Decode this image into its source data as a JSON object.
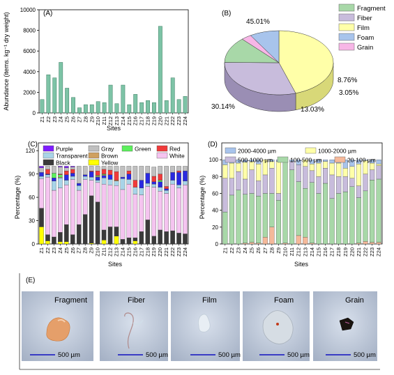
{
  "panels": {
    "a": {
      "letter": "(A)"
    },
    "b": {
      "letter": "(B)"
    },
    "c": {
      "letter": "(C)"
    },
    "d": {
      "letter": "(D)"
    },
    "e": {
      "letter": "(E)"
    }
  },
  "sites": [
    "Z1",
    "Z2",
    "Z3",
    "Z4",
    "Z5",
    "Z6",
    "Z7",
    "Z8",
    "Z9",
    "Z10",
    "Z11",
    "Z12",
    "Z13",
    "Z14",
    "Z15",
    "Z16",
    "Z17",
    "Z18",
    "Z19",
    "Z20",
    "Z21",
    "Z22",
    "Z23",
    "Z24"
  ],
  "colors": {
    "abundance_bar": "#7dc3a6",
    "fragment": "#a8d8a8",
    "fiber": "#c8bcdc",
    "film": "#ffffa8",
    "foam": "#a8c4ec",
    "grain": "#f7b6e6",
    "purple": "#7f1dff",
    "transparent": "#a8d4e8",
    "black": "#3a3a3a",
    "gray": "#c0c0c0",
    "blue": "#2a2ae0",
    "yellow": "#ffff00",
    "green": "#5cf05c",
    "brown": "#cfa060",
    "red": "#f03a3a",
    "white": "#f5c4f0",
    "size_2000_4000": "#a8c4ec",
    "size_1000_2000": "#ffffa8",
    "size_500_1000": "#c8bcdc",
    "size_100_500": "#a8d8a8",
    "size_20_100": "#f5b99a"
  },
  "chart_data": [
    {
      "id": "A",
      "type": "bar",
      "xlabel": "Sites",
      "ylabel": "Abundance (items. kg⁻¹ dry weight)",
      "ylim": [
        0,
        10000
      ],
      "yticks": [
        0,
        2000,
        4000,
        6000,
        8000,
        10000
      ],
      "categories": [
        "Z1",
        "Z2",
        "Z3",
        "Z4",
        "Z5",
        "Z6",
        "Z7",
        "Z8",
        "Z9",
        "Z10",
        "Z11",
        "Z12",
        "Z13",
        "Z14",
        "Z15",
        "Z16",
        "Z17",
        "Z18",
        "Z19",
        "Z20",
        "Z21",
        "Z22",
        "Z23",
        "Z24"
      ],
      "values": [
        1300,
        3700,
        3400,
        4900,
        2400,
        1500,
        500,
        800,
        800,
        1100,
        1000,
        2700,
        900,
        2700,
        800,
        1800,
        1000,
        1200,
        1000,
        8400,
        1200,
        3400,
        1300,
        1600
      ]
    },
    {
      "id": "B",
      "type": "pie",
      "legend": [
        "Fragment",
        "Fiber",
        "Film",
        "Foam",
        "Grain"
      ],
      "legend_position": "top-right",
      "slices": [
        {
          "label": "Film",
          "value": 45.01,
          "text": "45.01%"
        },
        {
          "label": "Fiber",
          "value": 30.14,
          "text": "30.14%"
        },
        {
          "label": "Fragment",
          "value": 13.03,
          "text": "13.03%"
        },
        {
          "label": "Grain",
          "value": 3.05,
          "text": "3.05%"
        },
        {
          "label": "Foam",
          "value": 8.76,
          "text": "8.76%"
        }
      ]
    },
    {
      "id": "C",
      "type": "bar",
      "stacked": true,
      "xlabel": "Sites",
      "ylabel": "Percentage (%)",
      "ylim": [
        0,
        130
      ],
      "yticks": [
        0,
        30,
        60,
        90,
        120
      ],
      "legend": [
        [
          "Purple",
          "Gray",
          "Green",
          "Red"
        ],
        [
          "Transparent",
          "Brown",
          "White"
        ],
        [
          "Black",
          "Yellow"
        ]
      ],
      "legend_position": "top",
      "stack_order": [
        "yellow",
        "black",
        "white",
        "transparent",
        "blue",
        "brown",
        "green",
        "red",
        "gray",
        "purple"
      ],
      "series": [
        {
          "name": "Yellow",
          "key": "yellow",
          "values": [
            22,
            4,
            0,
            3,
            3,
            0,
            0,
            0,
            1,
            0,
            5,
            0,
            10,
            0,
            0,
            4,
            0,
            0,
            0,
            0,
            0,
            0,
            0,
            0
          ]
        },
        {
          "name": "Black",
          "key": "black",
          "values": [
            24,
            8,
            9,
            12,
            22,
            12,
            25,
            38,
            61,
            54,
            13,
            22,
            12,
            6,
            8,
            4,
            16,
            31,
            10,
            18,
            16,
            17,
            14,
            13
          ]
        },
        {
          "name": "White",
          "key": "white",
          "values": [
            38,
            74,
            60,
            57,
            51,
            71,
            44,
            45,
            20,
            25,
            59,
            54,
            53,
            64,
            69,
            56,
            47,
            43,
            63,
            50,
            49,
            60,
            58,
            63
          ]
        },
        {
          "name": "Transparent",
          "key": "transparent",
          "values": [
            3,
            3,
            12,
            13,
            6,
            4,
            6,
            4,
            4,
            3,
            8,
            7,
            6,
            14,
            6,
            9,
            9,
            4,
            4,
            5,
            4,
            5,
            4,
            5
          ]
        },
        {
          "name": "Blue",
          "key": "blue",
          "values": [
            5,
            1,
            4,
            0,
            7,
            4,
            3,
            2,
            7,
            4,
            3,
            6,
            0,
            2,
            7,
            0,
            10,
            13,
            3,
            7,
            2,
            10,
            16,
            13
          ]
        },
        {
          "name": "Brown",
          "key": "brown",
          "values": [
            0,
            0,
            0,
            1,
            0,
            0,
            0,
            0,
            0,
            1,
            1,
            0,
            1,
            0,
            0,
            0,
            0,
            0,
            0,
            0,
            0,
            0,
            0,
            0
          ]
        },
        {
          "name": "Green",
          "key": "green",
          "values": [
            0,
            0,
            6,
            3,
            0,
            0,
            0,
            0,
            0,
            1,
            1,
            0,
            0,
            0,
            0,
            0,
            0,
            0,
            0,
            2,
            0,
            0,
            0,
            0
          ]
        },
        {
          "name": "Red",
          "key": "red",
          "values": [
            0,
            6,
            0,
            1,
            5,
            5,
            0,
            0,
            1,
            6,
            6,
            6,
            11,
            0,
            4,
            9,
            0,
            0,
            7,
            8,
            3,
            0,
            2,
            0
          ]
        },
        {
          "name": "Gray",
          "key": "gray",
          "values": [
            6,
            4,
            9,
            9,
            4,
            3,
            22,
            11,
            6,
            6,
            4,
            5,
            7,
            14,
            6,
            18,
            18,
            9,
            12,
            10,
            26,
            8,
            6,
            6
          ]
        },
        {
          "name": "Purple",
          "key": "purple",
          "values": [
            2,
            0,
            0,
            1,
            2,
            1,
            0,
            0,
            0,
            0,
            0,
            0,
            0,
            0,
            0,
            0,
            0,
            0,
            0,
            0,
            0,
            0,
            0,
            0
          ]
        }
      ]
    },
    {
      "id": "D",
      "type": "bar",
      "stacked": true,
      "xlabel": "Sites",
      "ylabel": "Percentage (%)",
      "ylim": [
        0,
        120
      ],
      "yticks": [
        0,
        20,
        40,
        60,
        80,
        100
      ],
      "legend": [
        [
          "2000-4000 µm",
          "1000-2000 µm"
        ],
        [
          "500-1000 µm",
          "100-500 µm",
          "20-100 µm"
        ]
      ],
      "legend_position": "top",
      "stack_order": [
        "20_100",
        "100_500",
        "500_1000",
        "1000_2000",
        "2000_4000"
      ],
      "series": [
        {
          "name": "20-100 µm",
          "key": "size_20_100",
          "values": [
            0,
            0,
            0,
            1,
            2,
            1,
            8,
            20,
            0,
            1,
            0,
            10,
            8,
            1,
            0,
            0,
            0,
            0,
            0,
            0,
            1,
            3,
            2,
            2
          ]
        },
        {
          "name": "100-500 µm",
          "key": "size_100_500",
          "values": [
            38,
            58,
            64,
            58,
            58,
            56,
            52,
            40,
            52,
            96,
            88,
            64,
            58,
            72,
            60,
            72,
            54,
            60,
            62,
            68,
            54,
            60,
            74,
            75
          ]
        },
        {
          "name": "500-1000 µm",
          "key": "size_500_1000",
          "values": [
            40,
            20,
            22,
            18,
            28,
            18,
            22,
            30,
            8,
            2,
            10,
            20,
            26,
            14,
            20,
            18,
            28,
            20,
            18,
            10,
            14,
            20,
            12,
            16
          ]
        },
        {
          "name": "1000-2000 µm",
          "key": "size_1000_2000",
          "values": [
            16,
            18,
            10,
            20,
            10,
            20,
            18,
            8,
            38,
            0,
            0,
            0,
            8,
            8,
            16,
            8,
            14,
            16,
            10,
            14,
            26,
            16,
            8,
            2
          ]
        },
        {
          "name": "2000-4000 µm",
          "key": "size_2000_4000",
          "values": [
            6,
            4,
            4,
            3,
            2,
            5,
            0,
            2,
            2,
            1,
            2,
            6,
            0,
            5,
            4,
            2,
            4,
            4,
            10,
            8,
            5,
            1,
            4,
            5
          ]
        }
      ]
    }
  ],
  "micrographs": [
    {
      "label": "Fragment",
      "scale": "500 µm",
      "icon": "fragment-particle-icon"
    },
    {
      "label": "Fiber",
      "scale": "500 µm",
      "icon": "fiber-particle-icon"
    },
    {
      "label": "Film",
      "scale": "500 µm",
      "icon": "film-particle-icon"
    },
    {
      "label": "Foam",
      "scale": "500 µm",
      "icon": "foam-particle-icon"
    },
    {
      "label": "Grain",
      "scale": "500 µm",
      "icon": "grain-particle-icon"
    }
  ]
}
